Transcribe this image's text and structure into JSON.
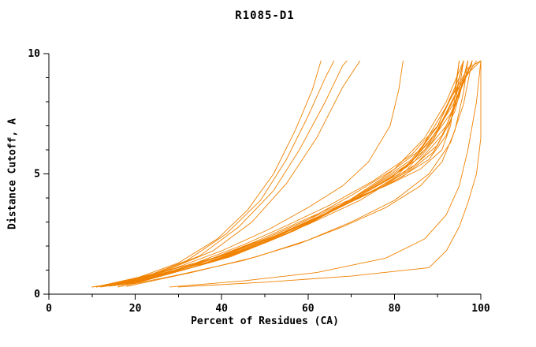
{
  "chart_data": {
    "type": "line",
    "title": "R1085-D1",
    "xlabel": "Percent of Residues (CA)",
    "ylabel": "Distance Cutoff, A",
    "xlim": [
      0,
      100
    ],
    "ylim": [
      0,
      10
    ],
    "x_major_ticks": [
      0,
      20,
      40,
      60,
      80,
      100
    ],
    "x_minor_step": 10,
    "y_major_ticks": [
      0,
      5,
      10
    ],
    "y_minor_step": 1,
    "line_color": "#f08200",
    "series": [
      {
        "points": [
          [
            10,
            0.3
          ],
          [
            18,
            0.5
          ],
          [
            28,
            0.9
          ],
          [
            38,
            1.5
          ],
          [
            48,
            2.2
          ],
          [
            58,
            3.0
          ],
          [
            68,
            3.8
          ],
          [
            78,
            4.5
          ],
          [
            86,
            5.2
          ],
          [
            91,
            6.0
          ],
          [
            93,
            7.0
          ],
          [
            94,
            8.2
          ],
          [
            95,
            9.7
          ]
        ]
      },
      {
        "points": [
          [
            11,
            0.3
          ],
          [
            20,
            0.55
          ],
          [
            30,
            1.0
          ],
          [
            40,
            1.6
          ],
          [
            50,
            2.3
          ],
          [
            60,
            3.1
          ],
          [
            70,
            3.9
          ],
          [
            80,
            4.7
          ],
          [
            88,
            5.6
          ],
          [
            92,
            6.6
          ],
          [
            94,
            7.8
          ],
          [
            95,
            9.0
          ],
          [
            96,
            9.7
          ]
        ]
      },
      {
        "points": [
          [
            12,
            0.3
          ],
          [
            21,
            0.6
          ],
          [
            31,
            1.05
          ],
          [
            42,
            1.7
          ],
          [
            52,
            2.4
          ],
          [
            62,
            3.2
          ],
          [
            72,
            4.0
          ],
          [
            82,
            4.9
          ],
          [
            89,
            5.9
          ],
          [
            93,
            7.2
          ],
          [
            95,
            8.5
          ],
          [
            96,
            9.7
          ]
        ]
      },
      {
        "points": [
          [
            13,
            0.32
          ],
          [
            22,
            0.62
          ],
          [
            33,
            1.1
          ],
          [
            44,
            1.8
          ],
          [
            54,
            2.5
          ],
          [
            64,
            3.3
          ],
          [
            74,
            4.2
          ],
          [
            83,
            5.1
          ],
          [
            90,
            6.2
          ],
          [
            94,
            7.6
          ],
          [
            96,
            9.0
          ],
          [
            97,
            9.7
          ]
        ]
      },
      {
        "points": [
          [
            14,
            0.33
          ],
          [
            24,
            0.68
          ],
          [
            35,
            1.2
          ],
          [
            46,
            1.9
          ],
          [
            56,
            2.6
          ],
          [
            66,
            3.5
          ],
          [
            76,
            4.4
          ],
          [
            85,
            5.4
          ],
          [
            91,
            6.6
          ],
          [
            95,
            8.2
          ],
          [
            97,
            9.7
          ]
        ]
      },
      {
        "points": [
          [
            15,
            0.35
          ],
          [
            25,
            0.72
          ],
          [
            36,
            1.25
          ],
          [
            47,
            2.0
          ],
          [
            57,
            2.75
          ],
          [
            67,
            3.6
          ],
          [
            77,
            4.6
          ],
          [
            86,
            5.7
          ],
          [
            92,
            7.0
          ],
          [
            96,
            8.8
          ],
          [
            98,
            9.7
          ]
        ]
      },
      {
        "points": [
          [
            16,
            0.35
          ],
          [
            26,
            0.78
          ],
          [
            38,
            1.35
          ],
          [
            49,
            2.1
          ],
          [
            59,
            2.9
          ],
          [
            69,
            3.8
          ],
          [
            79,
            4.8
          ],
          [
            87,
            6.0
          ],
          [
            93,
            7.5
          ],
          [
            97,
            9.2
          ],
          [
            98,
            9.7
          ]
        ]
      },
      {
        "points": [
          [
            17,
            0.38
          ],
          [
            28,
            0.85
          ],
          [
            40,
            1.45
          ],
          [
            51,
            2.2
          ],
          [
            61,
            3.0
          ],
          [
            71,
            4.0
          ],
          [
            81,
            5.0
          ],
          [
            88,
            6.3
          ],
          [
            94,
            8.0
          ],
          [
            98,
            9.7
          ]
        ]
      },
      {
        "points": [
          [
            18,
            0.4
          ],
          [
            30,
            0.95
          ],
          [
            42,
            1.55
          ],
          [
            53,
            2.35
          ],
          [
            63,
            3.2
          ],
          [
            73,
            4.2
          ],
          [
            83,
            5.3
          ],
          [
            90,
            6.8
          ],
          [
            95,
            8.6
          ],
          [
            99,
            9.7
          ]
        ]
      },
      {
        "points": [
          [
            19,
            0.42
          ],
          [
            32,
            1.05
          ],
          [
            44,
            1.7
          ],
          [
            55,
            2.5
          ],
          [
            65,
            3.4
          ],
          [
            75,
            4.5
          ],
          [
            84,
            5.6
          ],
          [
            91,
            7.2
          ],
          [
            96,
            9.0
          ],
          [
            100,
            9.7
          ]
        ]
      },
      {
        "points": [
          [
            20,
            0.45
          ],
          [
            34,
            1.15
          ],
          [
            46,
            1.85
          ],
          [
            57,
            2.65
          ],
          [
            67,
            3.6
          ],
          [
            77,
            4.8
          ],
          [
            86,
            6.0
          ],
          [
            92,
            7.8
          ],
          [
            97,
            9.4
          ],
          [
            100,
            9.7
          ]
        ]
      },
      {
        "points": [
          [
            16,
            0.3
          ],
          [
            30,
            0.8
          ],
          [
            45,
            1.4
          ],
          [
            58,
            2.1
          ],
          [
            68,
            2.8
          ],
          [
            78,
            3.6
          ],
          [
            86,
            4.5
          ],
          [
            91,
            5.5
          ],
          [
            94,
            6.8
          ],
          [
            96,
            8.4
          ],
          [
            97,
            9.7
          ]
        ]
      },
      {
        "points": [
          [
            18,
            0.32
          ],
          [
            33,
            0.9
          ],
          [
            48,
            1.55
          ],
          [
            60,
            2.25
          ],
          [
            70,
            3.0
          ],
          [
            80,
            3.9
          ],
          [
            88,
            5.0
          ],
          [
            93,
            6.3
          ],
          [
            96,
            7.9
          ],
          [
            98,
            9.7
          ]
        ]
      },
      {
        "points": [
          [
            12,
            0.35
          ],
          [
            22,
            0.75
          ],
          [
            34,
            1.3
          ],
          [
            45,
            2.05
          ],
          [
            55,
            2.85
          ],
          [
            65,
            3.7
          ],
          [
            75,
            4.7
          ],
          [
            84,
            5.8
          ],
          [
            90,
            7.0
          ],
          [
            94,
            8.5
          ],
          [
            95,
            9.7
          ]
        ]
      },
      {
        "points": [
          [
            14,
            0.4
          ],
          [
            26,
            0.9
          ],
          [
            38,
            1.5
          ],
          [
            50,
            2.3
          ],
          [
            60,
            3.1
          ],
          [
            70,
            4.1
          ],
          [
            80,
            5.2
          ],
          [
            87,
            6.5
          ],
          [
            92,
            8.0
          ],
          [
            96,
            9.7
          ]
        ]
      },
      {
        "points": [
          [
            12,
            0.3
          ],
          [
            20,
            0.65
          ],
          [
            30,
            1.3
          ],
          [
            39,
            2.3
          ],
          [
            46,
            3.5
          ],
          [
            52,
            5.0
          ],
          [
            57,
            6.8
          ],
          [
            61,
            8.5
          ],
          [
            63,
            9.7
          ]
        ]
      },
      {
        "points": [
          [
            13,
            0.32
          ],
          [
            22,
            0.7
          ],
          [
            32,
            1.4
          ],
          [
            41,
            2.5
          ],
          [
            49,
            3.9
          ],
          [
            55,
            5.6
          ],
          [
            60,
            7.4
          ],
          [
            64,
            9.0
          ],
          [
            66,
            9.7
          ]
        ]
      },
      {
        "points": [
          [
            14,
            0.35
          ],
          [
            24,
            0.8
          ],
          [
            35,
            1.6
          ],
          [
            44,
            2.8
          ],
          [
            52,
            4.3
          ],
          [
            58,
            6.0
          ],
          [
            64,
            8.0
          ],
          [
            68,
            9.5
          ],
          [
            69,
            9.7
          ]
        ]
      },
      {
        "points": [
          [
            15,
            0.35
          ],
          [
            26,
            0.9
          ],
          [
            38,
            1.8
          ],
          [
            47,
            3.0
          ],
          [
            55,
            4.6
          ],
          [
            62,
            6.5
          ],
          [
            68,
            8.6
          ],
          [
            72,
            9.7
          ]
        ]
      },
      {
        "points": [
          [
            15,
            0.35
          ],
          [
            28,
            1.0
          ],
          [
            40,
            1.8
          ],
          [
            51,
            2.7
          ],
          [
            60,
            3.6
          ],
          [
            68,
            4.5
          ],
          [
            74,
            5.5
          ],
          [
            79,
            7.0
          ],
          [
            81,
            8.5
          ],
          [
            82,
            9.7
          ]
        ]
      },
      {
        "points": [
          [
            30,
            0.3
          ],
          [
            50,
            0.5
          ],
          [
            70,
            0.75
          ],
          [
            88,
            1.1
          ],
          [
            92,
            1.8
          ],
          [
            95,
            2.8
          ],
          [
            97,
            3.8
          ],
          [
            99,
            5.0
          ],
          [
            100,
            6.5
          ],
          [
            100,
            9.7
          ]
        ]
      },
      {
        "points": [
          [
            28,
            0.3
          ],
          [
            45,
            0.55
          ],
          [
            62,
            0.9
          ],
          [
            78,
            1.5
          ],
          [
            87,
            2.3
          ],
          [
            92,
            3.3
          ],
          [
            95,
            4.5
          ],
          [
            97,
            6.0
          ],
          [
            99,
            8.0
          ],
          [
            100,
            9.7
          ]
        ]
      },
      {
        "points": [
          [
            10,
            0.3
          ],
          [
            16,
            0.45
          ],
          [
            25,
            0.8
          ],
          [
            36,
            1.3
          ],
          [
            48,
            2.0
          ],
          [
            60,
            2.9
          ],
          [
            72,
            3.9
          ],
          [
            82,
            5.0
          ],
          [
            89,
            6.4
          ],
          [
            94,
            8.2
          ],
          [
            96,
            9.7
          ]
        ]
      },
      {
        "points": [
          [
            11,
            0.3
          ],
          [
            19,
            0.55
          ],
          [
            29,
            1.0
          ],
          [
            41,
            1.65
          ],
          [
            53,
            2.45
          ],
          [
            64,
            3.35
          ],
          [
            74,
            4.35
          ],
          [
            84,
            5.5
          ],
          [
            90,
            7.0
          ],
          [
            95,
            9.0
          ],
          [
            96,
            9.7
          ]
        ]
      }
    ]
  }
}
